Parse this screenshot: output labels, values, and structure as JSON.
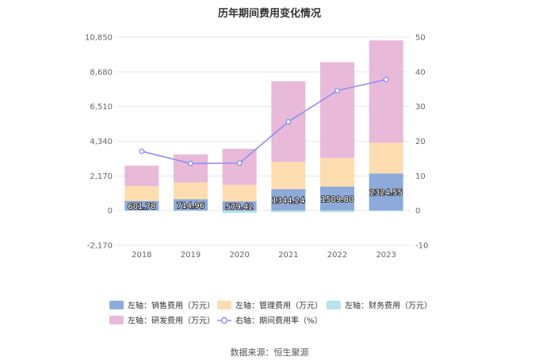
{
  "chart_data": {
    "type": "bar",
    "title": "历年期间费用变化情况",
    "categories": [
      "2018",
      "2019",
      "2020",
      "2021",
      "2022",
      "2023"
    ],
    "y_left": {
      "ticks": [
        "-2,170",
        "0",
        "2,170",
        "4,340",
        "6,510",
        "8,680",
        "10,850"
      ],
      "range": [
        -2170,
        10850
      ]
    },
    "y_right": {
      "ticks": [
        "-10",
        "0",
        "10",
        "20",
        "30",
        "40",
        "50"
      ],
      "range": [
        -10,
        50
      ]
    },
    "series": [
      {
        "name": "左轴：销售费用（万元）",
        "type": "bar",
        "axis": "left",
        "color": "#8eaadb",
        "values": [
          601.78,
          714.96,
          579.42,
          1344.24,
          1509.8,
          2324.55
        ],
        "labels": [
          "601.78",
          "714.96",
          "579.42",
          "1344.24",
          "1509.80",
          "2324.55"
        ]
      },
      {
        "name": "左轴：管理费用（万元）",
        "type": "bar",
        "axis": "left",
        "color": "#fdddb0",
        "values": [
          930,
          1050,
          1030,
          1700,
          1780,
          1920
        ]
      },
      {
        "name": "左轴：财务费用（万元）",
        "type": "bar",
        "axis": "left",
        "color": "#b7e4e8",
        "values": [
          -10,
          -10,
          -150,
          -100,
          -100,
          -40
        ]
      },
      {
        "name": "左轴：研发费用（万元）",
        "type": "bar",
        "axis": "left",
        "color": "#e8b9d9",
        "values": [
          1280,
          1750,
          2260,
          5050,
          6000,
          6410
        ]
      },
      {
        "name": "右轴：期间费用率（%）",
        "type": "line",
        "axis": "right",
        "color": "#8f8ff0",
        "values": [
          17.1,
          13.6,
          13.7,
          25.6,
          34.6,
          37.8
        ]
      }
    ],
    "legend_position": "bottom",
    "grid": true
  },
  "source": "数据来源：恒生聚源"
}
